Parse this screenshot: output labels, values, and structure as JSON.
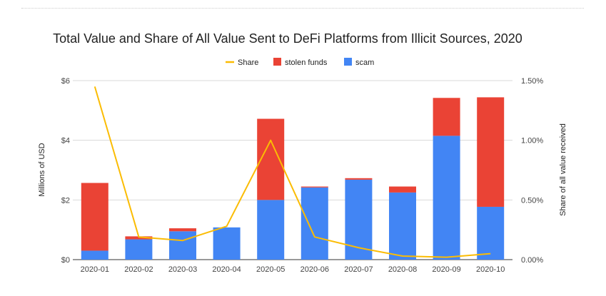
{
  "chart_data": {
    "type": "bar",
    "title": "Total Value and Share of All Value Sent to DeFi Platforms from Illicit Sources, 2020",
    "ylabel": "Millions of USD",
    "y2label": "Share of all value received",
    "categories": [
      "2020-01",
      "2020-02",
      "2020-03",
      "2020-04",
      "2020-05",
      "2020-06",
      "2020-07",
      "2020-08",
      "2020-09",
      "2020-10"
    ],
    "ylim": [
      0,
      6
    ],
    "y2lim": [
      0,
      1.5
    ],
    "yticks": [
      "$0",
      "$2",
      "$4",
      "$6"
    ],
    "y2ticks": [
      "0.00%",
      "0.50%",
      "1.00%",
      "1.50%"
    ],
    "stacked": true,
    "grid": true,
    "legend_position": "top",
    "legend": [
      "Share",
      "stolen funds",
      "scam"
    ],
    "series": [
      {
        "name": "scam",
        "type": "bar",
        "color": "#4285f4",
        "values": [
          0.3,
          0.68,
          0.95,
          1.08,
          2.0,
          2.42,
          2.68,
          2.25,
          4.15,
          1.77
        ]
      },
      {
        "name": "stolen funds",
        "type": "bar",
        "color": "#ea4335",
        "values": [
          2.27,
          0.1,
          0.1,
          0.0,
          2.72,
          0.03,
          0.05,
          0.2,
          1.27,
          3.67
        ]
      },
      {
        "name": "Share",
        "type": "line",
        "axis": "right",
        "color": "#fbbc04",
        "values": [
          1.45,
          0.19,
          0.16,
          0.28,
          1.0,
          0.19,
          0.1,
          0.03,
          0.02,
          0.05
        ]
      }
    ]
  }
}
